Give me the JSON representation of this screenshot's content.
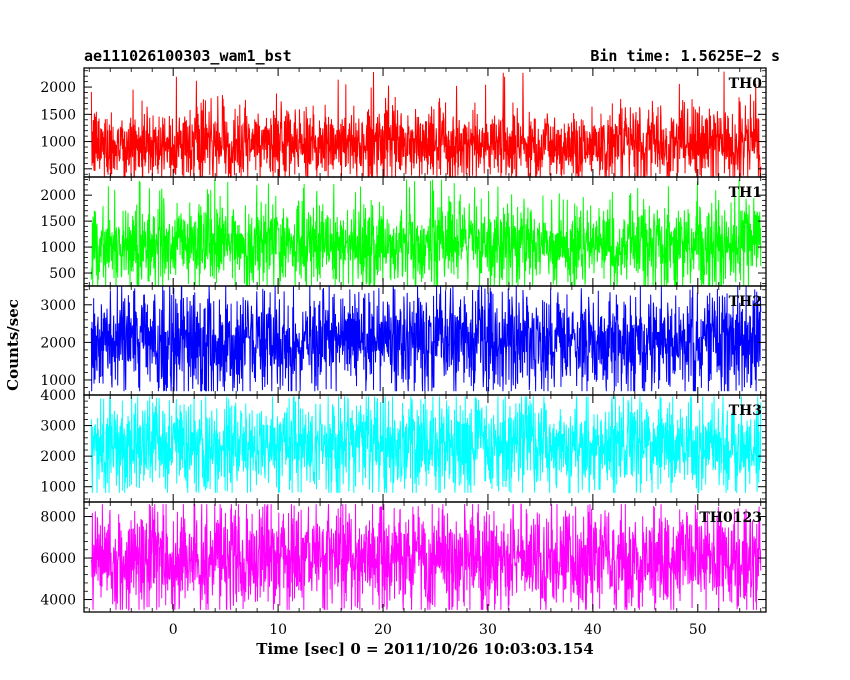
{
  "header": {
    "left_title": "ae111026100303_wam1_bst",
    "right_title": "Bin time: 1.5625E−2 s"
  },
  "chart_data": {
    "type": "line",
    "title": "ae111026100303_wam1_bst",
    "subtitle": "Bin time: 1.5625E−2 s",
    "xlabel": "Time [sec] 0 = 2011/10/26 10:03:03.154",
    "ylabel": "Counts/sec",
    "xlim": [
      -8.5,
      56.5
    ],
    "data_x_range": [
      -7.8,
      56
    ],
    "x_ticks": [
      0,
      10,
      20,
      30,
      40,
      50
    ],
    "grid": false,
    "panels": [
      {
        "name": "TH0",
        "color": "#ff0000",
        "ylim": [
          350,
          2350
        ],
        "y_ticks": [
          500,
          1000,
          1500,
          2000
        ],
        "mean": 950,
        "typical_low": 550,
        "typical_high": 1450,
        "min": 350,
        "max": 2300
      },
      {
        "name": "TH1",
        "color": "#00ff00",
        "ylim": [
          250,
          2350
        ],
        "y_ticks": [
          500,
          1000,
          1500,
          2000
        ],
        "mean": 1050,
        "typical_low": 500,
        "typical_high": 1600,
        "min": 250,
        "max": 2300
      },
      {
        "name": "TH2",
        "color": "#0000ff",
        "ylim": [
          600,
          3500
        ],
        "y_ticks": [
          1000,
          2000,
          3000
        ],
        "mean": 2000,
        "typical_low": 1100,
        "typical_high": 2900,
        "min": 700,
        "max": 3500
      },
      {
        "name": "TH3",
        "color": "#00ffff",
        "ylim": [
          500,
          4000
        ],
        "y_ticks": [
          1000,
          2000,
          3000,
          4000
        ],
        "mean": 2350,
        "typical_low": 1300,
        "typical_high": 3400,
        "min": 800,
        "max": 3950
      },
      {
        "name": "TH0123",
        "color": "#ff00ff",
        "ylim": [
          3400,
          8700
        ],
        "y_ticks": [
          4000,
          6000,
          8000
        ],
        "mean": 5950,
        "typical_low": 4300,
        "typical_high": 7700,
        "min": 3500,
        "max": 8600
      }
    ]
  }
}
